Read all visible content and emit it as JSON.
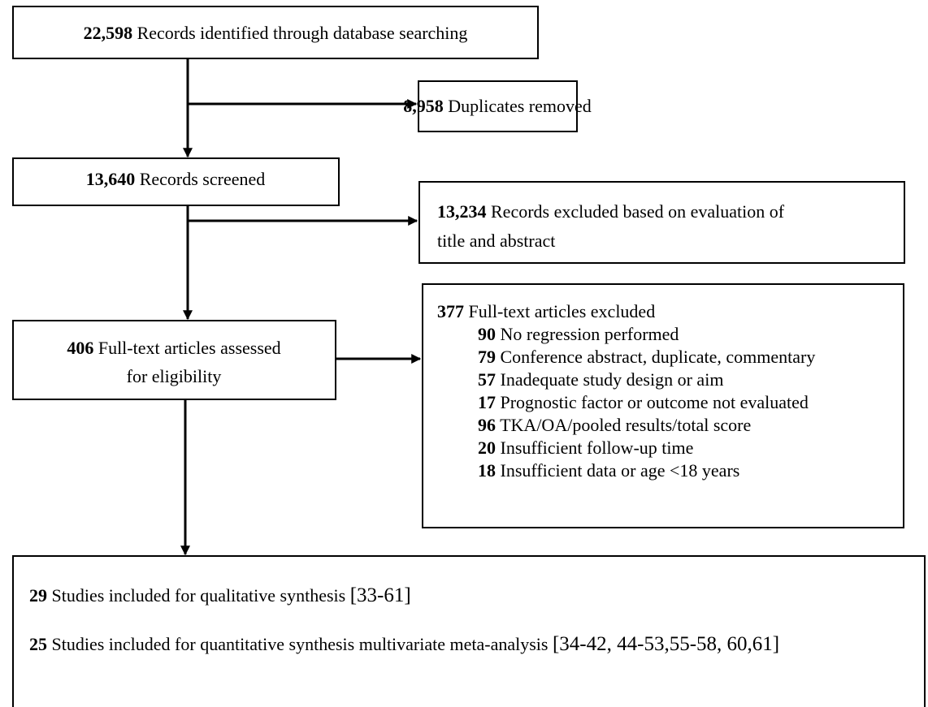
{
  "nodes": [
    {
      "count": "22,598",
      "label": "Records identified through database searching"
    },
    {
      "count": "8,958",
      "label": "Duplicates removed"
    },
    {
      "count": "13,640",
      "label": "Records screened"
    },
    {
      "count": "13,234",
      "label": "Records excluded based on evaluation of",
      "label2": "title and abstract"
    },
    {
      "count": "406",
      "label": "Full-text articles assessed",
      "label2": "for eligibility"
    },
    {
      "count": "377",
      "label": "Full-text articles excluded",
      "reasons": [
        {
          "count": "90",
          "label": "No regression performed"
        },
        {
          "count": "79",
          "label": "Conference abstract, duplicate, commentary"
        },
        {
          "count": "57",
          "label": "Inadequate study design or aim"
        },
        {
          "count": "17",
          "label": "Prognostic factor or outcome not evaluated"
        },
        {
          "count": "96",
          "label": "TKA/OA/pooled results/total score"
        },
        {
          "count": "20",
          "label": "Insufficient follow-up time"
        },
        {
          "count": "18",
          "label": "Insufficient data or age <18 years"
        }
      ]
    },
    {
      "items": [
        {
          "count": "29",
          "label": "Studies included for qualitative synthesis",
          "refs": "[33-61]"
        },
        {
          "count": "25",
          "label": "Studies included for quantitative synthesis multivariate meta-analysis",
          "refs": "[34-42, 44-53,55-58, 60,61]"
        }
      ]
    }
  ]
}
